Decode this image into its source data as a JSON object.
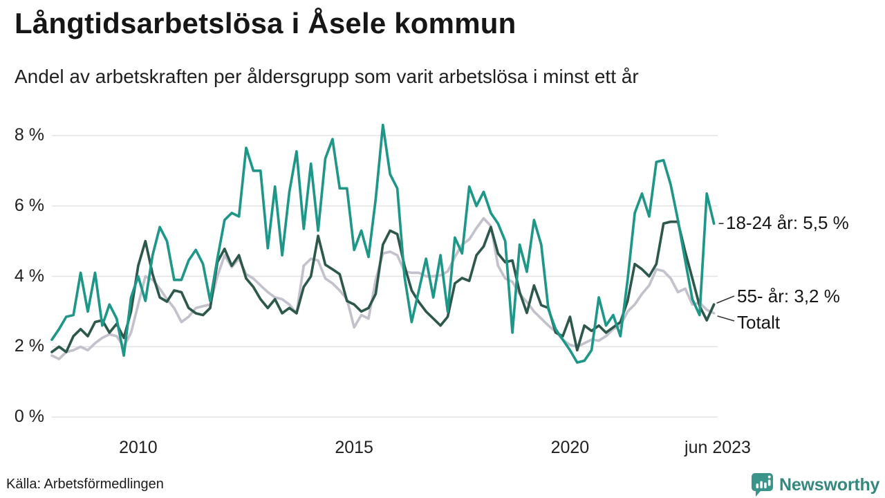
{
  "header": {
    "title": "Långtidsarbetslösa i Åsele kommun",
    "subtitle": "Andel av arbetskraften per åldersgrupp som varit arbetslösa i minst ett år"
  },
  "source": {
    "label": "Källa: Arbetsförmedlingen"
  },
  "branding": {
    "name": "Newsworthy",
    "icon": "newsworthy-speech-bubble-bar-chart-icon",
    "color": "#35887e",
    "icon_color": "#3a948a"
  },
  "colors": {
    "series_18_24": "#1e9688",
    "series_55": "#2e584b",
    "series_total": "#c3c1cb",
    "gridline": "#e3e3e3",
    "text": "#1f1f1f",
    "connector": "#333333"
  },
  "chart_data": {
    "type": "line",
    "title": "Långtidsarbetslösa i Åsele kommun",
    "subtitle": "Andel av arbetskraften per åldersgrupp som varit arbetslösa i minst ett år",
    "xlabel": "",
    "ylabel": "",
    "x_start": 2008.0,
    "x_step_months": 2,
    "xlim": [
      2008.0,
      2023.42
    ],
    "ylim": [
      0,
      8.5
    ],
    "grid": "horizontal",
    "legend_position": "right-end-labels",
    "y_ticks": [
      {
        "value": 0,
        "label": "0 %"
      },
      {
        "value": 2,
        "label": "2 %"
      },
      {
        "value": 4,
        "label": "4 %"
      },
      {
        "value": 6,
        "label": "6 %"
      },
      {
        "value": 8,
        "label": "8 %"
      }
    ],
    "x_ticks": [
      {
        "value": 2010.0,
        "label": "2010"
      },
      {
        "value": 2015.0,
        "label": "2015"
      },
      {
        "value": 2020.0,
        "label": "2020"
      },
      {
        "value": 2023.42,
        "label": "jun 2023"
      }
    ],
    "series": [
      {
        "name": "18-24 år",
        "color": "#1e9688",
        "end_label": "18-24 år: 5,5 %",
        "end_value": 5.5,
        "values": [
          2.2,
          2.5,
          2.85,
          2.9,
          4.1,
          3.0,
          4.1,
          2.6,
          3.2,
          2.8,
          1.75,
          3.4,
          4.0,
          3.3,
          4.6,
          5.4,
          5.0,
          3.9,
          3.9,
          4.45,
          4.75,
          4.35,
          3.3,
          4.5,
          5.6,
          5.8,
          5.7,
          7.65,
          7.0,
          7.0,
          4.8,
          6.55,
          4.6,
          6.4,
          7.55,
          5.35,
          7.2,
          5.3,
          7.35,
          7.9,
          6.5,
          6.5,
          4.75,
          5.3,
          4.55,
          6.2,
          8.3,
          6.9,
          6.5,
          4.0,
          2.7,
          3.6,
          4.5,
          3.4,
          4.6,
          3.0,
          5.1,
          4.65,
          6.55,
          6.0,
          6.4,
          5.8,
          5.5,
          5.0,
          2.4,
          4.9,
          4.13,
          5.6,
          4.9,
          3.06,
          2.5,
          2.2,
          1.9,
          1.55,
          1.6,
          1.9,
          3.4,
          2.6,
          2.9,
          2.3,
          3.9,
          5.8,
          6.35,
          5.7,
          7.25,
          7.3,
          6.6,
          5.6,
          4.45,
          3.35,
          2.9,
          6.35,
          5.5
        ]
      },
      {
        "name": "55- år",
        "color": "#2e584b",
        "end_label": "55- år: 3,2 %",
        "end_value": 3.2,
        "values": [
          1.85,
          2.0,
          1.85,
          2.3,
          2.5,
          2.3,
          2.7,
          2.75,
          2.4,
          2.65,
          2.25,
          3.0,
          4.3,
          5.0,
          4.06,
          3.4,
          3.28,
          3.6,
          3.55,
          3.1,
          2.95,
          2.9,
          3.1,
          4.4,
          4.78,
          4.3,
          4.6,
          3.94,
          3.7,
          3.35,
          3.1,
          3.35,
          2.95,
          3.1,
          2.95,
          3.7,
          4.0,
          5.15,
          4.33,
          4.2,
          4.06,
          3.3,
          3.2,
          3.0,
          3.1,
          3.5,
          4.9,
          5.3,
          5.2,
          4.3,
          3.6,
          3.27,
          3.0,
          2.8,
          2.6,
          2.85,
          3.8,
          3.95,
          3.87,
          4.6,
          4.85,
          5.4,
          4.65,
          4.4,
          4.45,
          3.55,
          2.96,
          3.74,
          3.18,
          3.1,
          2.4,
          2.3,
          2.85,
          1.9,
          2.6,
          2.45,
          2.6,
          2.4,
          2.55,
          2.7,
          3.3,
          4.35,
          4.2,
          4.0,
          4.35,
          5.5,
          5.55,
          5.55,
          4.7,
          3.94,
          3.16,
          2.75,
          3.2
        ]
      },
      {
        "name": "Totalt",
        "color": "#c3c1cb",
        "end_label": "Totalt",
        "end_value": 2.95,
        "values": [
          1.75,
          1.65,
          1.85,
          1.9,
          2.0,
          1.9,
          2.1,
          2.25,
          2.35,
          2.3,
          2.0,
          2.4,
          3.2,
          4.0,
          3.9,
          3.65,
          3.35,
          3.1,
          2.7,
          2.85,
          3.1,
          3.15,
          3.2,
          4.0,
          4.6,
          4.26,
          4.5,
          4.06,
          3.94,
          3.74,
          3.55,
          3.4,
          3.35,
          3.2,
          2.95,
          4.3,
          4.5,
          4.45,
          3.94,
          3.8,
          3.6,
          3.35,
          2.55,
          2.9,
          2.8,
          3.9,
          4.65,
          4.7,
          4.6,
          4.14,
          4.1,
          4.1,
          4.0,
          4.0,
          4.03,
          4.14,
          4.55,
          4.9,
          5.05,
          5.37,
          5.65,
          5.43,
          4.3,
          3.94,
          3.84,
          3.5,
          3.27,
          3.0,
          2.8,
          2.6,
          2.43,
          2.2,
          2.05,
          2.0,
          2.1,
          2.2,
          2.17,
          2.3,
          2.5,
          2.6,
          3.0,
          3.2,
          3.5,
          3.74,
          4.2,
          4.15,
          3.94,
          3.55,
          3.65,
          3.2,
          3.25,
          3.05,
          2.95
        ]
      }
    ]
  }
}
